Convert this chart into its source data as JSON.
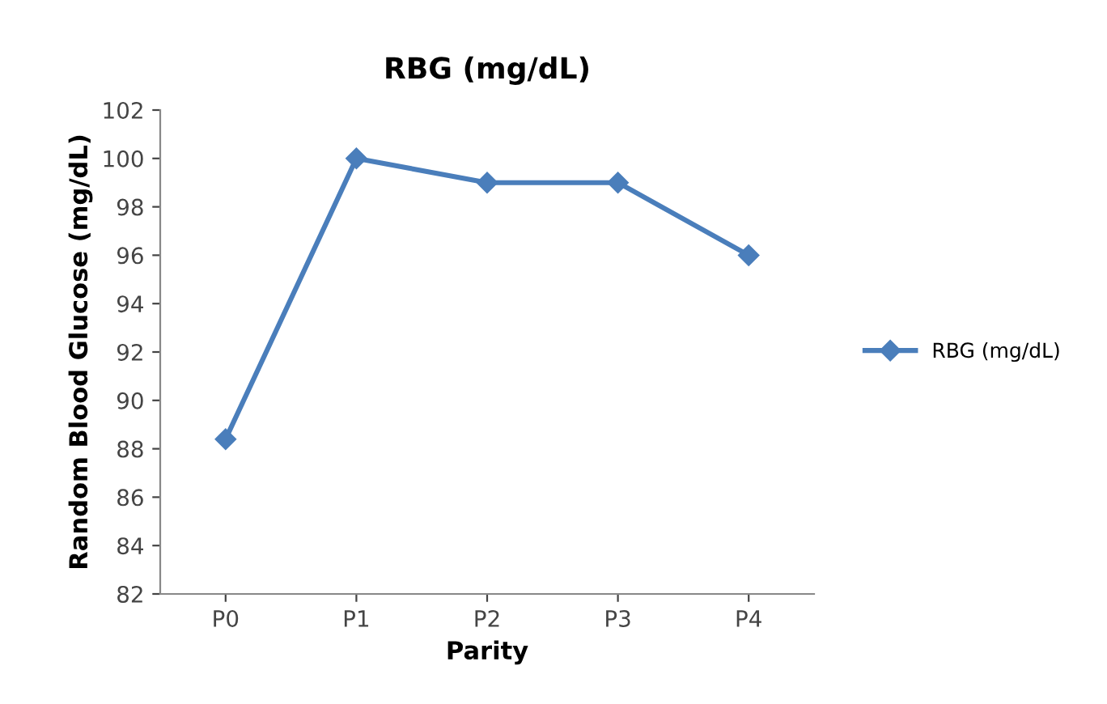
{
  "chart_data": {
    "type": "line",
    "title": "RBG (mg/dL)",
    "xlabel": "Parity",
    "ylabel": "Random Blood Glucose (mg/dL)",
    "categories": [
      "P0",
      "P1",
      "P2",
      "P3",
      "P4"
    ],
    "series": [
      {
        "name": "RBG (mg/dL)",
        "color": "#4a7ebb",
        "values": [
          88.4,
          100,
          99,
          99,
          96
        ]
      }
    ],
    "ylim": [
      82,
      102
    ],
    "yticks": [
      82,
      84,
      86,
      88,
      90,
      92,
      94,
      96,
      98,
      100,
      102
    ],
    "grid": false,
    "legend": "right",
    "marker": "diamond",
    "line_style": "solid"
  }
}
